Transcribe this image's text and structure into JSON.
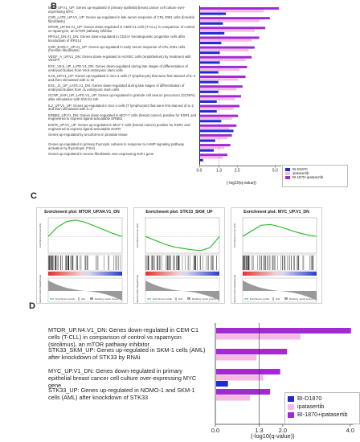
{
  "panels": {
    "B": "B",
    "C": "C",
    "D": "D"
  },
  "colors": {
    "d1870": "#1f2ad6",
    "ipatasertib": "#f6b8e6",
    "combo": "#a12ad3"
  },
  "panel_b": {
    "labels": [
      "MYC_UP.V1_UP: Genes up-regulated in primary epithelial breast cancer cell culture over-expressing MYC",
      "CSR_LATE_UP.V1_UP: Genes up-regulated in late serum response of CRL 2091 cells (foreskin fibroblasts)",
      "MTOR_UP.N4.V1_UP: Genes down-regulated in CEM-C1 cells (T-CLL) in comparison of control vs rapamycin, an mTOR pathway inhibitor",
      "RPS14_DN.V1_DN: Genes down-regulated in CD34+ hematopoietic progenitor cells after knockdown of RPS14",
      "CSR_EARLY_UP.V1_UP: Genes up-regulated in early serum response of CRL 2091 cells (foreskin fibroblasts)",
      "VEGF_A_UP.V1_DN: Genes down-regulated in HUVEC cells (endothelium) by treatment with VEGFA",
      "ESC_V6.5_UP_LATE.V1_DN: Genes down-regulated during late stages of differentiation of embryoid bodies from V6.5 embryonic stem cells",
      "IL15_UP.V1_UP: Genes up-regulated in Sez-4 cells (T lymphocyte) that were first starved of IL-2 and then stimulated with IL-15",
      "ESC_J1_UP_LATE.V1_DN: Genes down-regulated during late stages of differentiation of embryoid bodies from J1 embryonic stem cells",
      "GCNP_SHH_UP_LATE.V1_UP: Genes up-regulated in granule cell neuron precursors (GCNPs) after stimulation with Shh for 24h",
      "IL2_UP.V1_UP: Genes up-regulated in Sez-4 cells (T lymphocyte) that were first starved of IL-2 and then stimulated with IL-2",
      "ERBB2_UP.V1_DN: Genes down-regulated in MCF-7 cells (breast cancer) positive for ESR1 and engineered to express ligand-activatable ERBB2",
      "EGFR_UP.V1_UP: Genes up-regulated in MCF-7 cells (breast cancer) positive for ESR1 and engineered to express ligand-activatable EGFR",
      "Genes up-regulated by oncoforms in prostate tissue",
      "Genes up-regulated in primary thyrocyte cultures in response to cAMP signaling pathway activation by thyrotropin (TSH)",
      "Genes up-regulated in mouse fibroblasts over-expressing E2F1 gene"
    ],
    "x_ticks": [
      "0.0",
      "1.3",
      "2.5",
      "5.0"
    ],
    "x_label": "(-log10(q-value))",
    "legend": [
      "BI-D1870",
      "ipatasertib",
      "BI-1870+ipatasertib"
    ]
  },
  "panel_c": {
    "plots": [
      {
        "title": "Enrichment plot: MTOR_UP.N4.V1_DN"
      },
      {
        "title": "Enrichment plot: STK33_SKM_UP"
      },
      {
        "title": "Enrichment plot: MYC_UP.V1_DN"
      }
    ],
    "y_top_label": "Enrichment score (ES)",
    "y_bottom_label": "Ranked list metric (Signal2Noise)",
    "x_label": "Rank in Ordered Dataset",
    "legend": [
      "Enrichment profile",
      "Hits",
      "Ranking metric scores"
    ]
  },
  "chart_data": [
    {
      "type": "bar",
      "panel": "B",
      "orientation": "horizontal",
      "categories": [
        "MYC_UP.V1_UP",
        "CSR_LATE_UP.V1_UP",
        "MTOR_UP.N4.V1_UP",
        "RPS14_DN.V1_DN",
        "CSR_EARLY_UP.V1_UP",
        "VEGF_A_UP.V1_DN",
        "ESC_V6.5_UP_LATE.V1_DN",
        "IL15_UP.V1_UP",
        "ESC_J1_UP_LATE.V1_DN",
        "GCNP_SHH_UP_LATE.V1_UP",
        "IL2_UP.V1_UP",
        "ERBB2_UP.V1_DN",
        "EGFR_UP.V1_UP",
        "oncoforms prostate",
        "thyrocyte TSH",
        "E2F1 fibroblasts"
      ],
      "series": [
        {
          "name": "BI-D1870",
          "values": [
            1.7,
            1.5,
            1.6,
            1.4,
            1.3,
            1.3,
            1.2,
            1.2,
            1.2,
            1.1,
            1.1,
            1.4,
            2.2,
            1.0,
            0.9,
            0.2
          ]
        },
        {
          "name": "ipatasertib",
          "values": [
            4.2,
            3.9,
            3.6,
            3.4,
            3.2,
            3.0,
            2.6,
            2.5,
            2.4,
            2.3,
            2.2,
            2.1,
            1.9,
            1.8,
            1.6,
            1.5
          ]
        },
        {
          "name": "BI-1870+ipatasertib",
          "values": [
            5.2,
            4.6,
            4.3,
            3.9,
            3.6,
            3.4,
            3.1,
            3.0,
            2.8,
            2.7,
            2.6,
            2.5,
            2.4,
            2.1,
            2.0,
            1.8
          ]
        }
      ],
      "xlim": [
        0,
        5.3
      ],
      "threshold": 1.3,
      "xlabel": "(-log10(q-value))"
    },
    {
      "type": "line",
      "panel": "C",
      "title": "Enrichment plot: MTOR_UP.N4.V1_DN",
      "x": [
        0,
        2500,
        5000,
        7500,
        10000,
        12500,
        15000,
        17500,
        20000
      ],
      "y": [
        0.0,
        0.25,
        0.4,
        0.44,
        0.38,
        0.28,
        0.18,
        0.08,
        0.0
      ],
      "xlabel": "Rank in Ordered Dataset",
      "ylabel": "Enrichment score (ES)"
    },
    {
      "type": "line",
      "panel": "C",
      "title": "Enrichment plot: STK33_SKM_UP",
      "x": [
        0,
        2500,
        5000,
        7500,
        10000,
        12500,
        15000,
        17500,
        20000
      ],
      "y": [
        0.0,
        -0.1,
        -0.2,
        -0.28,
        -0.32,
        -0.36,
        -0.38,
        -0.3,
        0.0
      ],
      "xlabel": "Rank in Ordered Dataset",
      "ylabel": "Enrichment score (ES)"
    },
    {
      "type": "line",
      "panel": "C",
      "title": "Enrichment plot: MYC_UP.V1_DN",
      "x": [
        0,
        2500,
        5000,
        7500,
        10000,
        12500,
        15000,
        17500,
        20000
      ],
      "y": [
        0.0,
        0.15,
        0.3,
        0.32,
        0.26,
        0.18,
        0.1,
        0.04,
        0.0
      ],
      "xlabel": "Rank in Ordered Dataset",
      "ylabel": "Enrichment score (ES)"
    },
    {
      "type": "bar",
      "panel": "D",
      "orientation": "horizontal",
      "categories": [
        "MTOR_UP.N4.V1_DN",
        "STK33_SKM_UP",
        "MYC_UP.V1_DN",
        "STK33_UP"
      ],
      "labels": [
        "MTOR_UP.N4.V1_DN: Genes down-regulated in CEM-C1 cells (T-CLL) in comparison of control vs rapamycin (sirolimus), an mTOR pathway inhibitor",
        "STK33_SKM_UP: Genes up-regulated in SKM-1 cells (AML) after knockdown of STK33 by RNAi",
        "MYC_UP.V1_DN: Genes down-regulated in primary epithelial breast cancer cell culture over-expressing MYC gene",
        "STK33_UP: Genes up-regulated in NOMO-1 and SKM-1 cells (AML) after knockdown of STK33"
      ],
      "series": [
        {
          "name": "BI-D1870",
          "values": [
            0.0,
            0.0,
            0.35,
            0.0
          ]
        },
        {
          "name": "ipatasertib",
          "values": [
            2.5,
            1.2,
            1.4,
            1.0
          ]
        },
        {
          "name": "BI-1870+ipatasertib",
          "values": [
            4.0,
            2.1,
            1.9,
            1.6
          ]
        }
      ],
      "xticks": [
        "0.0",
        "1.3",
        "2.0",
        "4.0"
      ],
      "xlim": [
        0,
        4.1
      ],
      "threshold": 1.3,
      "xlabel": "(-log10(q-value))",
      "legend": [
        "BI-D1870",
        "ipatasertib",
        "BI-1870+ipatasertib"
      ]
    }
  ]
}
